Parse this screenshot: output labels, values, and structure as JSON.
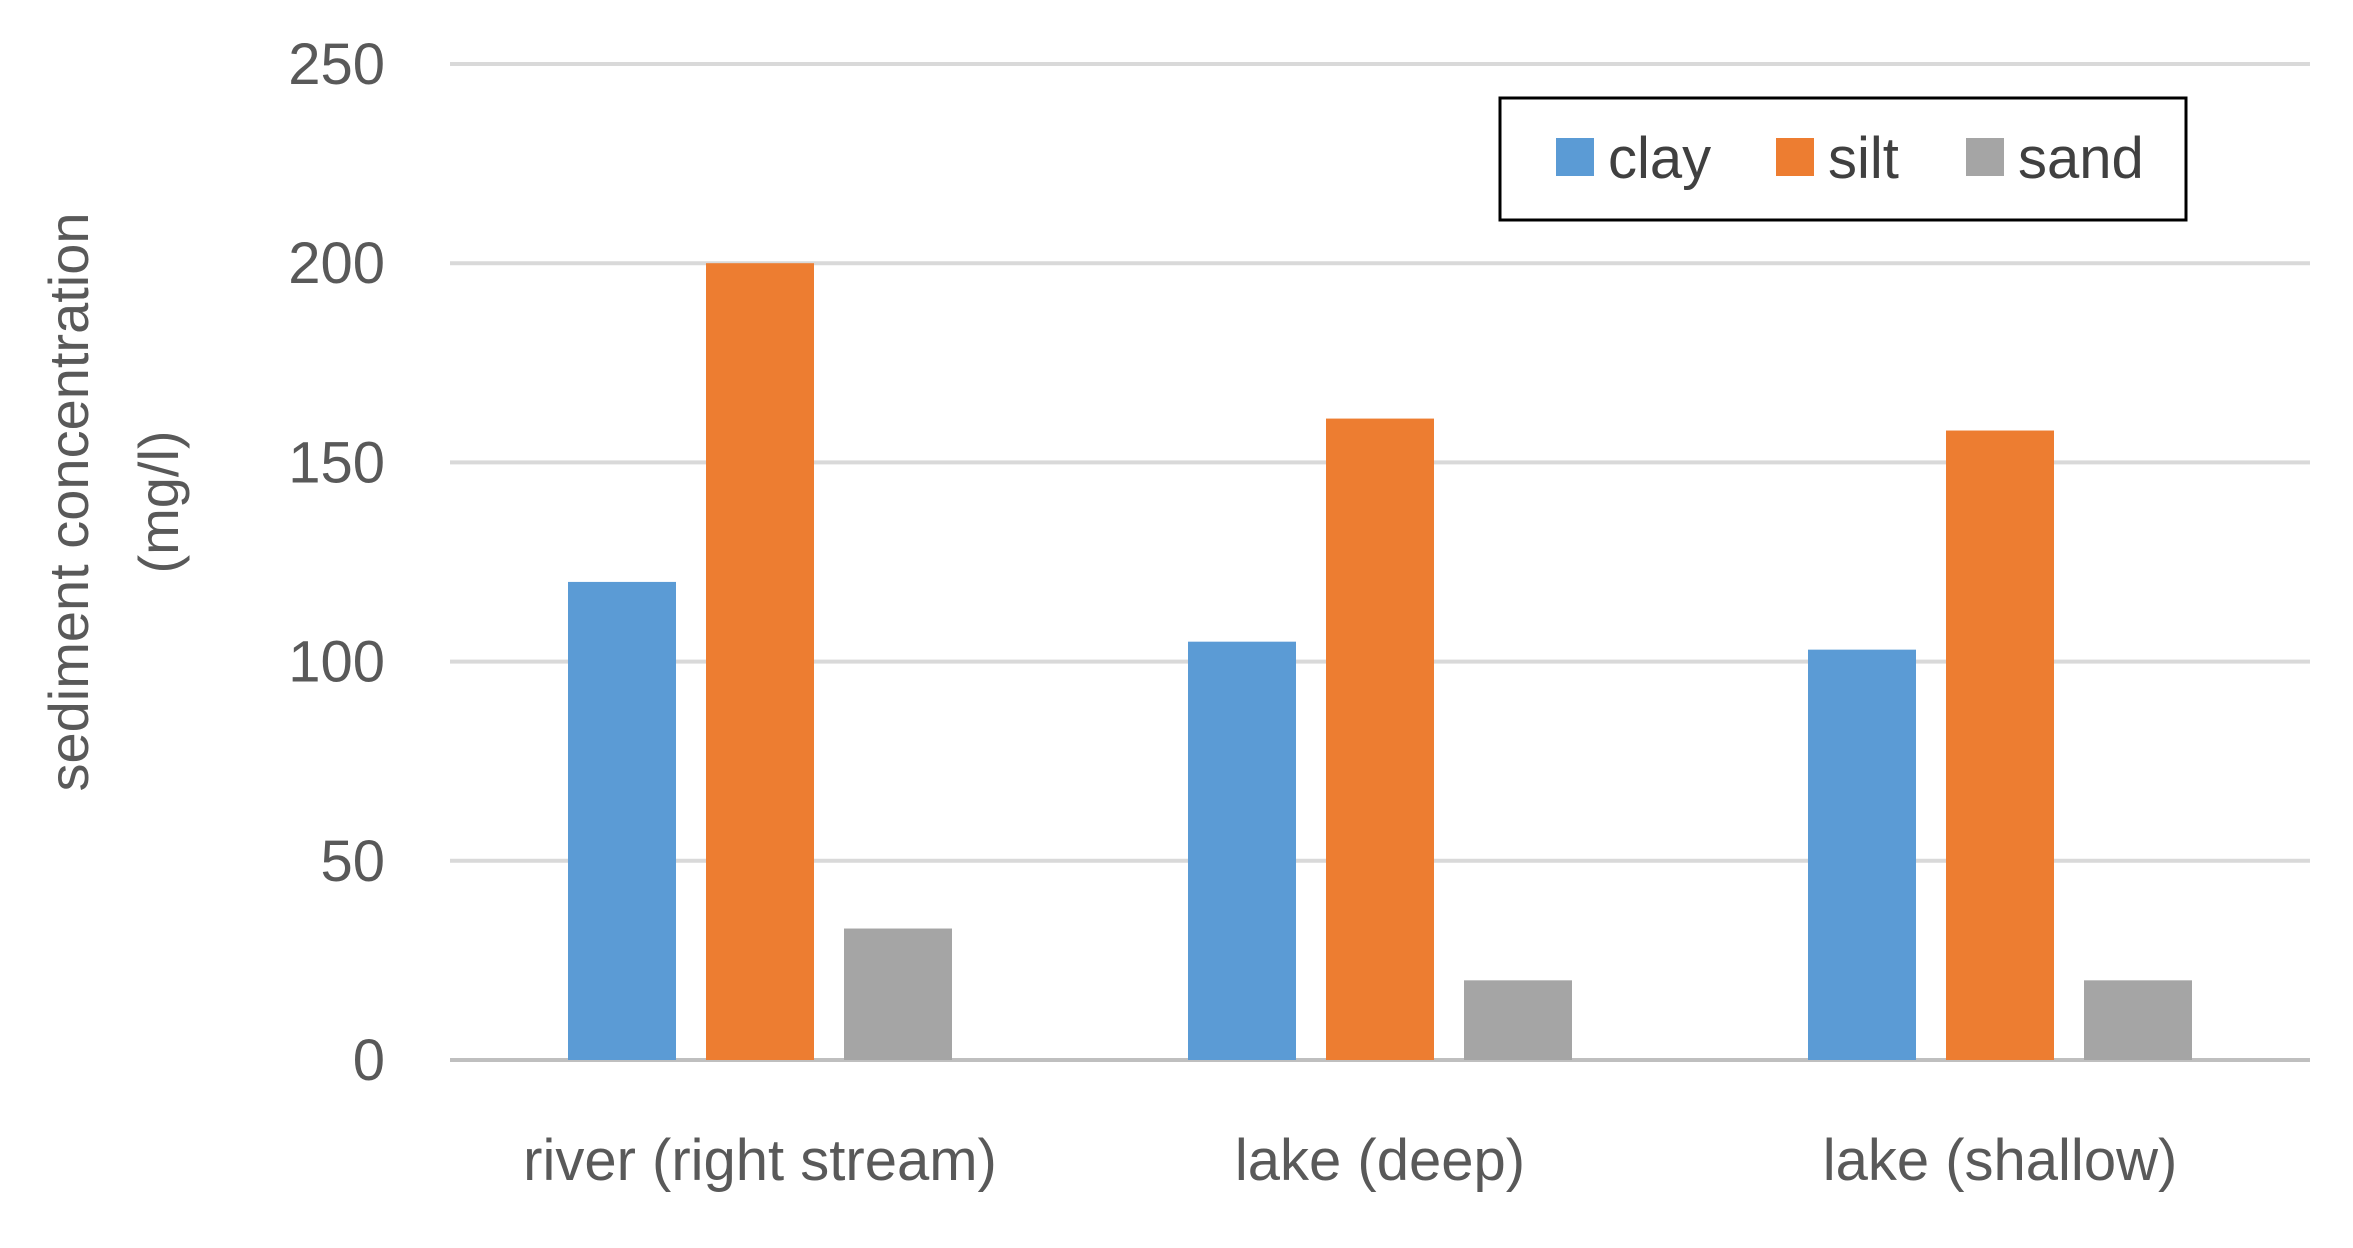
{
  "chart_data": {
    "type": "bar",
    "title": "",
    "xlabel": "",
    "ylabel": [
      "sediment concentration",
      "(mg/l)"
    ],
    "categories": [
      "river (right stream)",
      "lake (deep)",
      "lake (shallow)"
    ],
    "series": [
      {
        "name": "clay",
        "color": "#5B9BD5",
        "values": [
          120,
          105,
          103
        ]
      },
      {
        "name": "silt",
        "color": "#ED7D31",
        "values": [
          200,
          161,
          158
        ]
      },
      {
        "name": "sand",
        "color": "#A5A5A5",
        "values": [
          33,
          20,
          20
        ]
      }
    ],
    "ylim": [
      0,
      250
    ],
    "yticks": [
      0,
      50,
      100,
      150,
      200,
      250
    ],
    "grid": true,
    "legend_position": "top-right"
  }
}
